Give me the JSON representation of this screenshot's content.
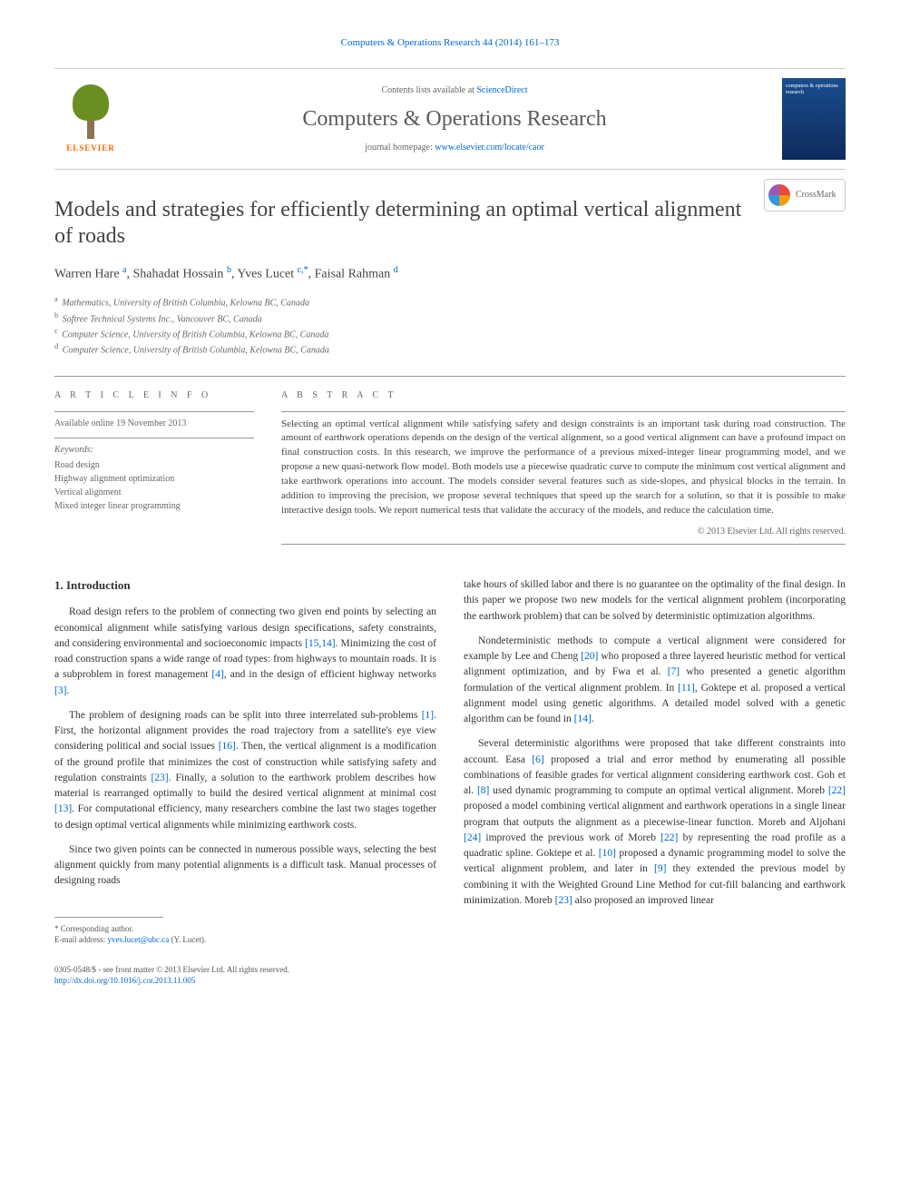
{
  "header": {
    "citation": "Computers & Operations Research 44 (2014) 161–173",
    "contents_prefix": "Contents lists available at ",
    "contents_link": "ScienceDirect",
    "journal_name": "Computers & Operations Research",
    "homepage_prefix": "journal homepage: ",
    "homepage_link": "www.elsevier.com/locate/caor",
    "elsevier_label": "ELSEVIER",
    "cover_text": "computers & operations research",
    "crossmark_label": "CrossMark"
  },
  "article": {
    "title": "Models and strategies for efficiently determining an optimal vertical alignment of roads",
    "authors_html": "Warren Hare <sup>a</sup>, Shahadat Hossain <sup>b</sup>, Yves Lucet <sup>c,*</sup>, Faisal Rahman <sup>d</sup>",
    "affiliations": [
      {
        "sup": "a",
        "text": "Mathematics, University of British Columbia, Kelowna BC, Canada"
      },
      {
        "sup": "b",
        "text": "Softree Technical Systems Inc., Vancouver BC, Canada"
      },
      {
        "sup": "c",
        "text": "Computer Science, University of British Columbia, Kelowna BC, Canada"
      },
      {
        "sup": "d",
        "text": "Computer Science, University of British Columbia, Kelowna BC, Canada"
      }
    ]
  },
  "info": {
    "heading": "A R T I C L E   I N F O",
    "available_online": "Available online 19 November 2013",
    "keywords_label": "Keywords:",
    "keywords": [
      "Road design",
      "Highway alignment optimization",
      "Vertical alignment",
      "Mixed integer linear programming"
    ]
  },
  "abstract": {
    "heading": "A B S T R A C T",
    "text": "Selecting an optimal vertical alignment while satisfying safety and design constraints is an important task during road construction. The amount of earthwork operations depends on the design of the vertical alignment, so a good vertical alignment can have a profound impact on final construction costs. In this research, we improve the performance of a previous mixed-integer linear programming model, and we propose a new quasi-network flow model. Both models use a piecewise quadratic curve to compute the minimum cost vertical alignment and take earthwork operations into account. The models consider several features such as side-slopes, and physical blocks in the terrain. In addition to improving the precision, we propose several techniques that speed up the search for a solution, so that it is possible to make interactive design tools. We report numerical tests that validate the accuracy of the models, and reduce the calculation time.",
    "copyright": "© 2013 Elsevier Ltd. All rights reserved."
  },
  "body": {
    "section_number": "1.",
    "section_title": "Introduction",
    "left_paragraphs": [
      "Road design refers to the problem of connecting two given end points by selecting an economical alignment while satisfying various design specifications, safety constraints, and considering environmental and socioeconomic impacts <span class=\"cite\">[15,14]</span>. Minimizing the cost of road construction spans a wide range of road types: from highways to mountain roads. It is a subproblem in forest management <span class=\"cite\">[4]</span>, and in the design of efficient highway networks <span class=\"cite\">[3]</span>.",
      "The problem of designing roads can be split into three interrelated sub-problems <span class=\"cite\">[1]</span>. First, the horizontal alignment provides the road trajectory from a satellite's eye view considering political and social issues <span class=\"cite\">[16]</span>. Then, the vertical alignment is a modification of the ground profile that minimizes the cost of construction while satisfying safety and regulation constraints <span class=\"cite\">[23]</span>. Finally, a solution to the earthwork problem describes how material is rearranged optimally to build the desired vertical alignment at minimal cost <span class=\"cite\">[13]</span>. For computational efficiency, many researchers combine the last two stages together to design optimal vertical alignments while minimizing earthwork costs.",
      "Since two given points can be connected in numerous possible ways, selecting the best alignment quickly from many potential alignments is a difficult task. Manual processes of designing roads"
    ],
    "right_paragraphs": [
      "take hours of skilled labor and there is no guarantee on the optimality of the final design. In this paper we propose two new models for the vertical alignment problem (incorporating the earthwork problem) that can be solved by deterministic optimization algorithms.",
      "Nondeterministic methods to compute a vertical alignment were considered for example by Lee and Cheng <span class=\"cite\">[20]</span> who proposed a three layered heuristic method for vertical alignment optimization, and by Fwa et al. <span class=\"cite\">[7]</span> who presented a genetic algorithm formulation of the vertical alignment problem. In <span class=\"cite\">[11]</span>, Goktepe et al. proposed a vertical alignment model using genetic algorithms. A detailed model solved with a genetic algorithm can be found in <span class=\"cite\">[14]</span>.",
      "Several deterministic algorithms were proposed that take different constraints into account. Easa <span class=\"cite\">[6]</span> proposed a trial and error method by enumerating all possible combinations of feasible grades for vertical alignment considering earthwork cost. Goh et al. <span class=\"cite\">[8]</span> used dynamic programming to compute an optimal vertical alignment. Moreb <span class=\"cite\">[22]</span> proposed a model combining vertical alignment and earthwork operations in a single linear program that outputs the alignment as a piecewise-linear function. Moreb and Aljohani <span class=\"cite\">[24]</span> improved the previous work of Moreb <span class=\"cite\">[22]</span> by representing the road profile as a quadratic spline. Goktepe et al. <span class=\"cite\">[10]</span> proposed a dynamic programming model to solve the vertical alignment problem, and later in <span class=\"cite\">[9]</span> they extended the previous model by combining it with the Weighted Ground Line Method for cut-fill balancing and earthwork minimization. Moreb <span class=\"cite\">[23]</span> also proposed an improved linear"
    ]
  },
  "footnote": {
    "corresponding": "* Corresponding author.",
    "email_label": "E-mail address: ",
    "email": "yves.lucet@ubc.ca",
    "email_name": " (Y. Lucet)."
  },
  "footer": {
    "issn": "0305-0548/$ - see front matter © 2013 Elsevier Ltd. All rights reserved.",
    "doi": "http://dx.doi.org/10.1016/j.cor.2013.11.005"
  },
  "colors": {
    "link": "#0066cc",
    "text": "#333333",
    "muted": "#666666",
    "elsevier_orange": "#ff6600",
    "cover_bg": "#1a4d8f"
  },
  "typography": {
    "title_fontsize": 24,
    "journal_name_fontsize": 24,
    "authors_fontsize": 14,
    "body_fontsize": 11.5,
    "abstract_fontsize": 11,
    "small_fontsize": 10,
    "footnote_fontsize": 9
  }
}
